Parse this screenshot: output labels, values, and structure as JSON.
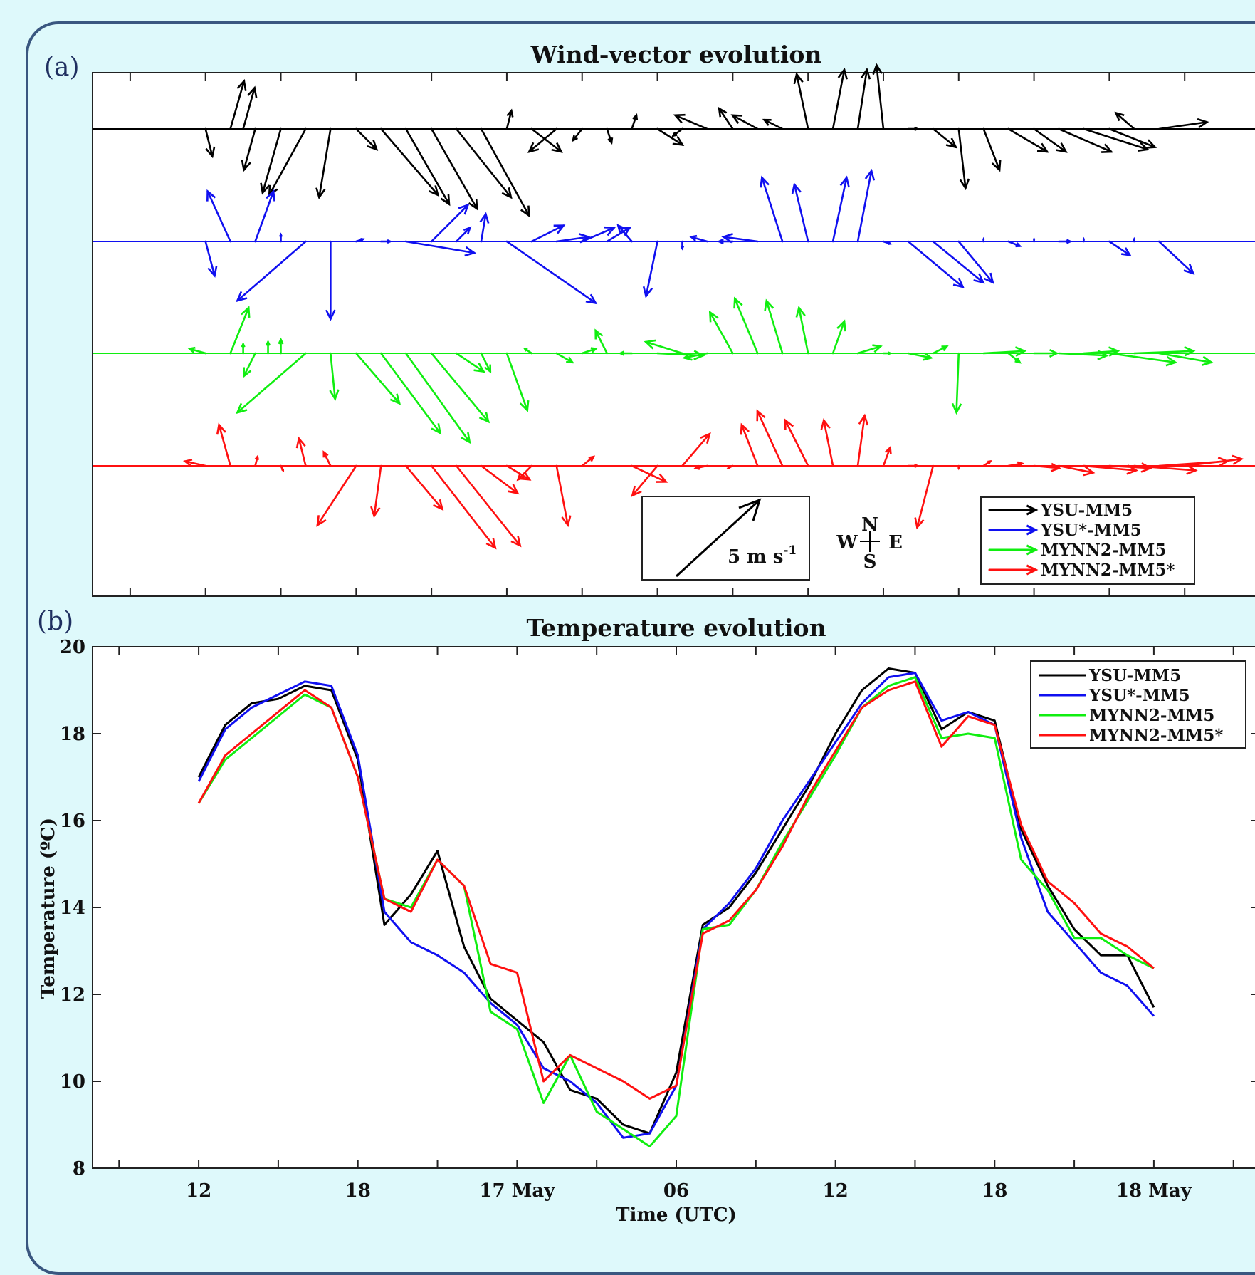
{
  "panels": {
    "a": "(a)",
    "b": "(b)"
  },
  "colors": {
    "YSU-MM5": "#000000",
    "YSU*-MM5": "#1010f0",
    "MYNN2-MM5": "#10ee10",
    "MYNN2-MM5*": "#ff1010"
  },
  "chart_data": [
    {
      "type": "quiver",
      "title": "Wind-vector evolution",
      "x_ticks": [],
      "x_range_hours": [
        -1.5,
        14
      ],
      "scale": {
        "label": "5 m s",
        "exponent": "-1",
        "magnitude": 5
      },
      "compass": {
        "n": "N",
        "s": "S",
        "w": "W",
        "e": "E"
      },
      "legend": [
        "YSU-MM5",
        "YSU*-MM5",
        "MYNN2-MM5",
        "MYNN2-MM5*"
      ],
      "legend_position": "bottom-right",
      "series": [
        {
          "name": "YSU-MM5",
          "color": "#000000",
          "x": [
            0,
            0.33,
            0.5,
            0.66,
            0.83,
            1,
            1.33,
            1.66,
            2,
            2.33,
            2.66,
            3,
            3.33,
            3.66,
            4,
            4.33,
            4.66,
            5,
            5.33,
            5.66,
            6,
            6.33,
            6.66,
            7,
            7.33,
            7.66,
            8,
            8.33,
            8.66,
            9,
            9.33,
            9.66,
            10,
            10.33,
            10.66,
            11,
            11.33,
            11.66,
            12,
            12.33,
            12.66
          ],
          "u": [
            0.3,
            0.6,
            0.5,
            -0.5,
            0,
            -0.8,
            -1.6,
            -0.5,
            0.9,
            2.5,
            1.9,
            2.0,
            2.4,
            2.1,
            0.2,
            1.3,
            -1.2,
            -0.4,
            0.2,
            0.2,
            1.1,
            -0.4,
            -1.4,
            -0.6,
            -1.1,
            -0.8,
            -0.5,
            0.5,
            0.4,
            -0.3,
            0.4,
            1.0,
            0.3,
            0.7,
            1.7,
            1.4,
            2.3,
            2.8,
            2.0,
            -0.8,
            2.1
          ],
          "v": [
            -1.2,
            2.1,
            1.8,
            -1.8,
            0,
            -2.8,
            -2.9,
            -3.0,
            -0.9,
            -2.9,
            -3.3,
            -3.5,
            -3.0,
            -3.8,
            0.8,
            -1.0,
            -1.0,
            -0.5,
            -0.6,
            0.6,
            -0.7,
            -0.3,
            0.6,
            0.9,
            0.6,
            0.4,
            2.4,
            2.6,
            2.6,
            2.8,
            0,
            -0.8,
            -2.6,
            -1.8,
            -1.0,
            -1.0,
            -1.0,
            -0.9,
            -0.8,
            0.7,
            0.3
          ]
        },
        {
          "name": "YSU*-MM5",
          "color": "#1010f0",
          "x": [
            0,
            0.33,
            0.66,
            1,
            1.33,
            1.66,
            2,
            2.33,
            2.66,
            3,
            3.33,
            3.66,
            4,
            4.33,
            4.66,
            5,
            5.33,
            5.66,
            6,
            6.33,
            6.66,
            7,
            7.33,
            7.66,
            8,
            8.33,
            8.66,
            9,
            9.33,
            9.66,
            10,
            10.33,
            10.66,
            11,
            11.33,
            11.66,
            12,
            12.33,
            12.66
          ],
          "u": [
            0.4,
            -1.0,
            0.8,
            0,
            -3.0,
            0,
            0.3,
            0.4,
            3.0,
            1.6,
            0.6,
            0.2,
            3.9,
            1.4,
            1.4,
            1.4,
            1.0,
            -0.6,
            -0.5,
            0,
            -0.7,
            -0.6,
            -1.5,
            -0.9,
            -0.6,
            0.6,
            0.6,
            0.3,
            2.4,
            2.2,
            1.5,
            0,
            0.5,
            0,
            0.5,
            0,
            0.9,
            0,
            1.5
          ],
          "v": [
            -1.5,
            2.2,
            2.2,
            0.3,
            -2.6,
            -3.4,
            0.1,
            0,
            -0.5,
            1.6,
            0.6,
            1.2,
            -2.7,
            0.7,
            0.2,
            0.6,
            0.6,
            0.7,
            -2.4,
            -0.3,
            0.2,
            0,
            0.2,
            2.8,
            2.5,
            2.8,
            3.1,
            -0.1,
            -2.0,
            -1.8,
            -1.8,
            0.1,
            -0.2,
            0.1,
            0,
            0.1,
            -0.6,
            0.1,
            -1.4
          ]
        },
        {
          "name": "MYNN2-MM5",
          "color": "#10ee10",
          "x": [
            0,
            0.33,
            0.5,
            0.66,
            0.83,
            1,
            1.33,
            1.66,
            2,
            2.33,
            2.66,
            3,
            3.33,
            3.66,
            4,
            4.33,
            4.66,
            5,
            5.33,
            5.66,
            6,
            6.33,
            6.66,
            7,
            7.33,
            7.66,
            8,
            8.33,
            8.66,
            9,
            9.33,
            9.66,
            10,
            10.33,
            10.66,
            11,
            11.33,
            11.66,
            12,
            12.33,
            12.66
          ],
          "u": [
            -0.7,
            0.8,
            0.0,
            -0.5,
            0.0,
            0.0,
            -3.0,
            0.2,
            1.9,
            2.6,
            2.8,
            2.5,
            1.2,
            0.4,
            0.9,
            -0.3,
            0.7,
            0.6,
            -0.5,
            -0.5,
            2.0,
            -1.6,
            -1.0,
            -1.0,
            -1.0,
            -0.7,
            -0.4,
            0.5,
            1.0,
            0.3,
            1.0,
            0.6,
            -0.1,
            1.8,
            0.5,
            1.0,
            2.1,
            1.5,
            2.9,
            2.6,
            2.3
          ],
          "v": [
            0.2,
            2.0,
            0.4,
            -1.0,
            0.5,
            0.6,
            -2.6,
            -2.0,
            -2.2,
            -3.5,
            -3.9,
            -3.0,
            -0.8,
            -0.8,
            -2.5,
            0.2,
            -0.4,
            0.2,
            1.0,
            0.0,
            -0.1,
            0.5,
            -0.2,
            1.8,
            2.4,
            2.3,
            2.0,
            1.4,
            0.3,
            0.0,
            -0.2,
            0.3,
            -2.6,
            0.1,
            -0.4,
            0.0,
            -0.1,
            0.1,
            -0.4,
            0.1,
            -0.4
          ]
        },
        {
          "name": "MYNN2-MM5*",
          "color": "#ff1010",
          "x": [
            -0.33,
            0,
            0.33,
            0.66,
            1,
            1.33,
            1.66,
            2,
            2.33,
            2.66,
            3,
            3.33,
            3.66,
            4,
            4.33,
            4.66,
            5,
            5.33,
            5.66,
            6,
            6.33,
            6.66,
            7,
            7.33,
            7.66,
            8,
            8.33,
            8.66,
            9,
            9.33,
            9.66,
            10,
            10.33,
            10.66,
            11,
            11.33,
            11.66,
            12,
            12.33,
            12.66,
            13
          ],
          "u": [
            0.0,
            -0.9,
            -0.5,
            0.1,
            0.1,
            -0.3,
            -0.3,
            -1.7,
            -0.3,
            1.6,
            2.8,
            2.8,
            1.6,
            1.0,
            -0.6,
            0.5,
            0.5,
            0.0,
            1.5,
            -1.1,
            1.2,
            -0.5,
            -0.2,
            -0.7,
            -1.1,
            -1.0,
            -0.4,
            0.3,
            0.3,
            0.4,
            -0.7,
            0.0,
            0.3,
            0.6,
            1.1,
            1.5,
            2.3,
            1.8,
            2.7,
            3.0,
            2.5
          ],
          "v": [
            0.0,
            0.2,
            1.8,
            0.4,
            -0.2,
            1.2,
            0.6,
            -2.6,
            -2.2,
            -1.9,
            -3.6,
            -3.5,
            -1.2,
            -0.6,
            -0.6,
            -2.6,
            0.4,
            0.0,
            -0.7,
            -1.3,
            1.4,
            -0.1,
            -0.1,
            1.8,
            2.4,
            2.0,
            2.0,
            2.2,
            0.8,
            0.0,
            -2.7,
            -0.1,
            0.2,
            0.1,
            -0.1,
            -0.3,
            -0.2,
            -0.1,
            -0.2,
            0.2,
            0.3
          ]
        }
      ]
    },
    {
      "type": "line",
      "title": "Temperature evolution",
      "xlabel": "Time (UTC)",
      "ylabel": "Temperature (ºC)",
      "ylim": [
        8,
        20
      ],
      "y_ticks": [
        "8",
        "10",
        "12",
        "14",
        "16",
        "18",
        "20"
      ],
      "x_ticks": [
        {
          "h": 0,
          "label": "12"
        },
        {
          "h": 6,
          "label": "18"
        },
        {
          "h": 12,
          "label": "17 May"
        },
        {
          "h": 18,
          "label": "06"
        },
        {
          "h": 24,
          "label": "12"
        },
        {
          "h": 30,
          "label": "18"
        },
        {
          "h": 36,
          "label": "18 May"
        }
      ],
      "x_range_hours": [
        -4,
        40
      ],
      "legend": [
        "YSU-MM5",
        "YSU*-MM5",
        "MYNN2-MM5",
        "MYNN2-MM5*"
      ],
      "legend_position": "top-right",
      "x": [
        0,
        1,
        2,
        3,
        4,
        5,
        6,
        7,
        8,
        9,
        10,
        11,
        12,
        13,
        14,
        15,
        16,
        17,
        18,
        19,
        20,
        21,
        22,
        23,
        24,
        25,
        26,
        27,
        28,
        29,
        30,
        31,
        32,
        33,
        34,
        35,
        36
      ],
      "series": [
        {
          "name": "YSU-MM5",
          "color": "#000000",
          "values": [
            17.0,
            18.2,
            18.7,
            18.8,
            19.1,
            19.0,
            17.4,
            13.6,
            14.3,
            15.3,
            13.1,
            11.9,
            11.4,
            10.9,
            9.8,
            9.6,
            9.0,
            8.8,
            10.2,
            13.6,
            14.0,
            14.8,
            15.8,
            16.8,
            18.0,
            19.0,
            19.5,
            19.4,
            18.1,
            18.5,
            18.3,
            15.8,
            14.5,
            13.5,
            12.9,
            12.9,
            11.7
          ]
        },
        {
          "name": "YSU*-MM5",
          "color": "#1010f0",
          "values": [
            16.9,
            18.1,
            18.6,
            18.9,
            19.2,
            19.1,
            17.5,
            13.9,
            13.2,
            12.9,
            12.5,
            11.8,
            11.3,
            10.3,
            10.0,
            9.5,
            8.7,
            8.8,
            9.9,
            13.5,
            14.1,
            14.9,
            16.0,
            16.9,
            17.8,
            18.7,
            19.3,
            19.4,
            18.3,
            18.5,
            18.2,
            15.6,
            13.9,
            13.2,
            12.5,
            12.2,
            11.5
          ]
        },
        {
          "name": "MYNN2-MM5",
          "color": "#10ee10",
          "values": [
            16.4,
            17.4,
            17.9,
            18.4,
            18.9,
            18.6,
            17.0,
            14.2,
            14.0,
            15.1,
            14.5,
            11.6,
            11.2,
            9.5,
            10.6,
            9.3,
            8.9,
            8.5,
            9.2,
            13.5,
            13.6,
            14.4,
            15.5,
            16.5,
            17.5,
            18.6,
            19.1,
            19.3,
            17.9,
            18.0,
            17.9,
            15.1,
            14.4,
            13.3,
            13.3,
            12.9,
            12.6
          ]
        },
        {
          "name": "MYNN2-MM5*",
          "color": "#ff1010",
          "values": [
            16.4,
            17.5,
            18.0,
            18.5,
            19.0,
            18.6,
            17.0,
            14.2,
            13.9,
            15.1,
            14.5,
            12.7,
            12.5,
            10.0,
            10.6,
            10.3,
            10.0,
            9.6,
            9.9,
            13.4,
            13.7,
            14.4,
            15.4,
            16.6,
            17.6,
            18.6,
            19.0,
            19.2,
            17.7,
            18.4,
            18.2,
            15.9,
            14.6,
            14.1,
            13.4,
            13.1,
            12.6
          ]
        }
      ]
    }
  ]
}
